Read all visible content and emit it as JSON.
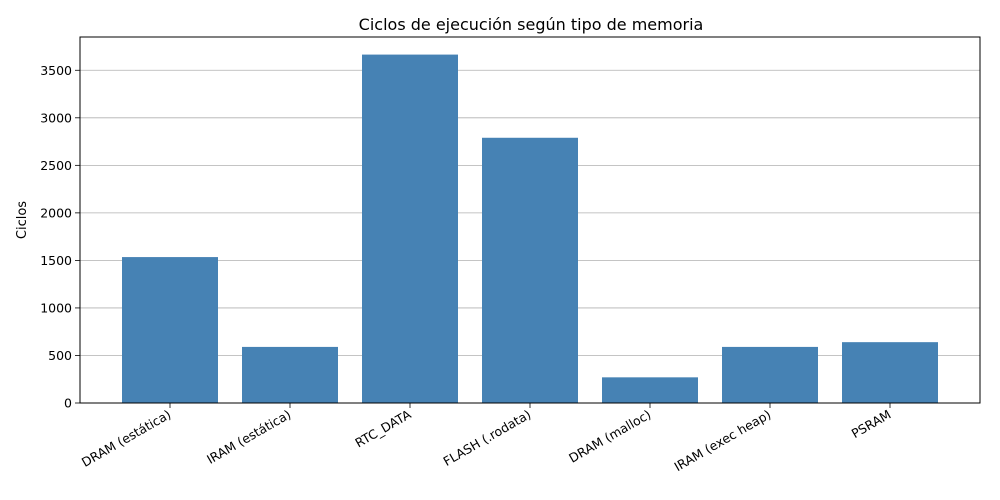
{
  "chart_data": {
    "type": "bar",
    "title": "Ciclos de ejecución según tipo de memoria",
    "xlabel": "",
    "ylabel": "Ciclos",
    "categories": [
      "DRAM (estática)",
      "IRAM (estática)",
      "RTC_DATA",
      "FLASH (.rodata)",
      "DRAM (malloc)",
      "IRAM (exec heap)",
      "PSRAM"
    ],
    "values": [
      1535,
      590,
      3665,
      2790,
      270,
      590,
      640
    ],
    "ylim": [
      0,
      3850
    ],
    "yticks": [
      0,
      500,
      1000,
      1500,
      2000,
      2500,
      3000,
      3500
    ],
    "grid": "y",
    "bar_color": "#4682b4"
  }
}
